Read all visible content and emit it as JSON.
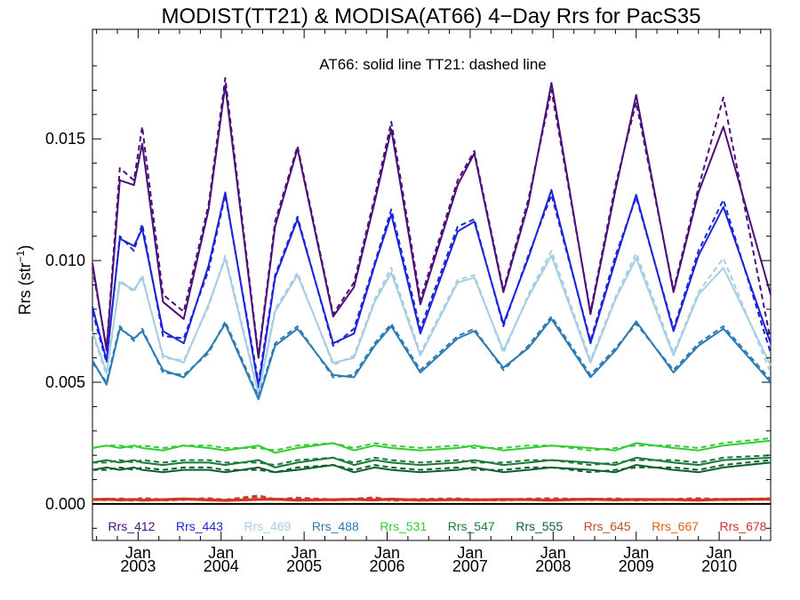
{
  "chart_data": {
    "type": "line",
    "title": "MODIST(TT21) & MODISA(AT66) 4−Day Rrs for PacS35",
    "ylabel": "Rrs (str",
    "ylabel_sup": "−1",
    "ylabel_close": ")",
    "annotation": "AT66: solid line   TT21: dashed line",
    "xlim": [
      2002.45,
      2010.62
    ],
    "ylim": [
      -0.0015,
      0.0195
    ],
    "yticks": [
      {
        "value": 0.0,
        "label": "0.000"
      },
      {
        "value": 0.005,
        "label": "0.005"
      },
      {
        "value": 0.01,
        "label": "0.010"
      },
      {
        "value": 0.015,
        "label": "0.015"
      }
    ],
    "xticks": [
      {
        "value": 2003.0,
        "label1": "Jan",
        "label2": "2003"
      },
      {
        "value": 2004.0,
        "label1": "Jan",
        "label2": "2004"
      },
      {
        "value": 2005.0,
        "label1": "Jan",
        "label2": "2005"
      },
      {
        "value": 2006.0,
        "label1": "Jan",
        "label2": "2006"
      },
      {
        "value": 2007.0,
        "label1": "Jan",
        "label2": "2007"
      },
      {
        "value": 2008.0,
        "label1": "Jan",
        "label2": "2008"
      },
      {
        "value": 2009.0,
        "label1": "Jan",
        "label2": "2009"
      },
      {
        "value": 2010.0,
        "label1": "Jan",
        "label2": "2010"
      }
    ],
    "series": [
      {
        "name": "Rrs_412",
        "color": "#4b0f7a",
        "solid": [
          0.0099,
          0.0063,
          0.0133,
          0.0131,
          0.0148,
          0.0083,
          0.0076,
          0.0121,
          0.0172,
          0.006,
          0.0114,
          0.0146,
          0.0077,
          0.0089,
          0.0124,
          0.0154,
          0.0082,
          0.0131,
          0.0144,
          0.0087,
          0.0123,
          0.0173,
          0.0078,
          0.0129,
          0.0168,
          0.0087,
          0.0128,
          0.0155,
          0.0086
        ],
        "dashed": [
          0.0097,
          0.0064,
          0.0138,
          0.0133,
          0.0155,
          0.0086,
          0.0079,
          0.0123,
          0.0175,
          0.0061,
          0.0116,
          0.0147,
          0.0078,
          0.0091,
          0.0126,
          0.0157,
          0.0084,
          0.0133,
          0.0145,
          0.0088,
          0.0125,
          0.017,
          0.0079,
          0.0131,
          0.0165,
          0.0088,
          0.013,
          0.0167,
          0.0067
        ]
      },
      {
        "name": "Rrs_443",
        "color": "#1b24d6",
        "solid": [
          0.0081,
          0.0059,
          0.0109,
          0.0106,
          0.0113,
          0.0071,
          0.0066,
          0.0098,
          0.0128,
          0.0048,
          0.0093,
          0.0117,
          0.0066,
          0.007,
          0.0098,
          0.0119,
          0.007,
          0.0112,
          0.0116,
          0.0074,
          0.0101,
          0.0129,
          0.0066,
          0.01,
          0.0127,
          0.0071,
          0.0102,
          0.0122,
          0.0066
        ],
        "dashed": [
          0.0079,
          0.0058,
          0.011,
          0.0104,
          0.0115,
          0.0069,
          0.0068,
          0.0096,
          0.0127,
          0.005,
          0.0094,
          0.0118,
          0.0065,
          0.0072,
          0.0099,
          0.0121,
          0.0072,
          0.0114,
          0.0117,
          0.0073,
          0.0102,
          0.0127,
          0.0067,
          0.0102,
          0.0126,
          0.0072,
          0.0104,
          0.0125,
          0.0062
        ]
      },
      {
        "name": "Rrs_469",
        "color": "#a6cee3",
        "solid": [
          0.0071,
          0.0054,
          0.0091,
          0.0088,
          0.0093,
          0.0061,
          0.0058,
          0.0082,
          0.0101,
          0.0045,
          0.0079,
          0.0094,
          0.0058,
          0.006,
          0.0083,
          0.0095,
          0.0061,
          0.0091,
          0.0093,
          0.0063,
          0.0085,
          0.0102,
          0.0058,
          0.0084,
          0.0101,
          0.0061,
          0.0086,
          0.0097,
          0.0057
        ],
        "dashed": [
          0.007,
          0.0053,
          0.0092,
          0.0087,
          0.0094,
          0.006,
          0.0059,
          0.0081,
          0.0102,
          0.0046,
          0.008,
          0.0095,
          0.0057,
          0.0061,
          0.0084,
          0.0097,
          0.0062,
          0.0092,
          0.0094,
          0.0062,
          0.0086,
          0.0104,
          0.0059,
          0.0085,
          0.0103,
          0.0062,
          0.0087,
          0.0101,
          0.0054
        ]
      },
      {
        "name": "Rrs_488",
        "color": "#2b7bb4",
        "solid": [
          0.0059,
          0.0049,
          0.0072,
          0.0068,
          0.0071,
          0.0055,
          0.0052,
          0.0063,
          0.0074,
          0.0043,
          0.0065,
          0.0072,
          0.0053,
          0.0052,
          0.0065,
          0.0073,
          0.0054,
          0.0068,
          0.0071,
          0.0056,
          0.0064,
          0.0076,
          0.0052,
          0.0063,
          0.0075,
          0.0054,
          0.0065,
          0.0072,
          0.005
        ],
        "dashed": [
          0.0058,
          0.005,
          0.0073,
          0.0067,
          0.0072,
          0.0054,
          0.0053,
          0.0062,
          0.0075,
          0.0044,
          0.0066,
          0.0073,
          0.0052,
          0.0053,
          0.0066,
          0.0074,
          0.0055,
          0.0069,
          0.0072,
          0.0055,
          0.0065,
          0.0077,
          0.0053,
          0.0064,
          0.0074,
          0.0055,
          0.0066,
          0.0073,
          0.0051
        ]
      },
      {
        "name": "Rrs_531",
        "color": "#33cc33",
        "solid": [
          0.0023,
          0.0024,
          0.0023,
          0.0024,
          0.0023,
          0.0022,
          0.0024,
          0.0023,
          0.0022,
          0.0024,
          0.0021,
          0.0023,
          0.0025,
          0.0022,
          0.0024,
          0.0023,
          0.0022,
          0.0023,
          0.0024,
          0.0022,
          0.0023,
          0.0024,
          0.0023,
          0.0022,
          0.0025,
          0.0023,
          0.0022,
          0.0024,
          0.0026
        ],
        "dashed": [
          0.0023,
          0.0024,
          0.0024,
          0.0023,
          0.0024,
          0.0023,
          0.0024,
          0.0024,
          0.0023,
          0.0023,
          0.0022,
          0.0024,
          0.0025,
          0.0023,
          0.0025,
          0.0024,
          0.0023,
          0.0024,
          0.0023,
          0.0023,
          0.0024,
          0.0024,
          0.0022,
          0.0023,
          0.0024,
          0.0024,
          0.0023,
          0.0025,
          0.0027
        ]
      },
      {
        "name": "Rrs_547",
        "color": "#1a7a3a",
        "solid": [
          0.0017,
          0.0018,
          0.0017,
          0.0018,
          0.0017,
          0.0016,
          0.0017,
          0.0017,
          0.0016,
          0.0018,
          0.0015,
          0.0017,
          0.0019,
          0.0016,
          0.0018,
          0.0017,
          0.0016,
          0.0017,
          0.0018,
          0.0016,
          0.0017,
          0.0018,
          0.0017,
          0.0016,
          0.0019,
          0.0017,
          0.0016,
          0.0018,
          0.0019
        ],
        "dashed": [
          0.0017,
          0.0017,
          0.0018,
          0.0017,
          0.0018,
          0.0017,
          0.0018,
          0.0018,
          0.0017,
          0.0017,
          0.0016,
          0.0018,
          0.0019,
          0.0017,
          0.0019,
          0.0018,
          0.0017,
          0.0018,
          0.0017,
          0.0017,
          0.0018,
          0.0018,
          0.0016,
          0.0017,
          0.0018,
          0.0018,
          0.0017,
          0.0019,
          0.002
        ]
      },
      {
        "name": "Rrs_555",
        "color": "#0d5e2e",
        "solid": [
          0.0014,
          0.0015,
          0.0014,
          0.0015,
          0.0014,
          0.0013,
          0.0014,
          0.0014,
          0.0013,
          0.0015,
          0.0013,
          0.0014,
          0.0016,
          0.0013,
          0.0015,
          0.0014,
          0.0013,
          0.0014,
          0.0015,
          0.0013,
          0.0014,
          0.0015,
          0.0014,
          0.0013,
          0.0016,
          0.0014,
          0.0013,
          0.0015,
          0.0017
        ],
        "dashed": [
          0.0014,
          0.0014,
          0.0015,
          0.0014,
          0.0015,
          0.0014,
          0.0015,
          0.0015,
          0.0014,
          0.0014,
          0.0013,
          0.0015,
          0.0016,
          0.0014,
          0.0016,
          0.0015,
          0.0014,
          0.0015,
          0.0014,
          0.0014,
          0.0015,
          0.0015,
          0.0013,
          0.0014,
          0.0015,
          0.0015,
          0.0014,
          0.0016,
          0.0018
        ]
      },
      {
        "name": "Rrs_645",
        "color": "#c0502a",
        "solid": [
          0.0002,
          0.00022,
          0.00019,
          0.00021,
          0.00018,
          0.0002,
          0.00023,
          0.00019,
          0.00017,
          0.00021,
          0.00022,
          0.00018,
          0.0002,
          0.00021,
          0.00019,
          0.00022,
          0.00018,
          0.0002,
          0.00019,
          0.00021,
          0.0002,
          0.00018,
          0.00022,
          0.00019,
          0.00021,
          0.0002,
          0.00018,
          0.00021,
          0.00022
        ],
        "dashed": [
          0.00021,
          0.0002,
          0.00023,
          0.00018,
          0.00025,
          0.00019,
          0.00021,
          0.00024,
          0.00018,
          0.00035,
          0.0002,
          0.00026,
          0.00019,
          0.00022,
          0.00027,
          0.00018,
          0.00021,
          0.00023,
          0.0002,
          0.00019,
          0.00022,
          0.00024,
          0.0002,
          0.00023,
          0.00019,
          0.00021,
          0.00024,
          0.0002,
          0.00023
        ]
      },
      {
        "name": "Rrs_667",
        "color": "#e0601a",
        "solid": [
          0.00015,
          0.00017,
          0.00014,
          0.00016,
          0.00013,
          0.00015,
          0.00018,
          0.00014,
          0.00012,
          0.00016,
          0.00017,
          0.00013,
          0.00015,
          0.00016,
          0.00014,
          0.00017,
          0.00013,
          0.00015,
          0.00014,
          0.00016,
          0.00015,
          0.00013,
          0.00017,
          0.00014,
          0.00016,
          0.00015,
          0.00013,
          0.00016,
          0.00017
        ],
        "dashed": [
          0.00016,
          0.00015,
          0.00018,
          0.00013,
          0.00019,
          0.00014,
          0.00016,
          0.00018,
          0.00013,
          0.00025,
          0.00015,
          0.0002,
          0.00014,
          0.00017,
          0.00021,
          0.00013,
          0.00016,
          0.00017,
          0.00015,
          0.00014,
          0.00017,
          0.00018,
          0.00015,
          0.00017,
          0.00014,
          0.00016,
          0.00018,
          0.00015,
          0.00017
        ]
      },
      {
        "name": "Rrs_678",
        "color": "#d03030",
        "solid": [
          0.00017,
          0.00019,
          0.00016,
          0.00018,
          0.00015,
          0.00017,
          0.0002,
          0.00016,
          0.00014,
          0.00018,
          0.00019,
          0.00015,
          0.00017,
          0.00018,
          0.00016,
          0.00019,
          0.00015,
          0.00017,
          0.00016,
          0.00018,
          0.00017,
          0.00015,
          0.00019,
          0.00016,
          0.00018,
          0.00017,
          0.00015,
          0.00018,
          0.00019
        ],
        "dashed": [
          0.00018,
          0.00017,
          0.0002,
          0.00015,
          0.00022,
          0.00016,
          0.00018,
          0.00021,
          0.00015,
          0.0003,
          0.00017,
          0.00023,
          0.00016,
          0.00019,
          0.00024,
          0.00015,
          0.00018,
          0.0002,
          0.00017,
          0.00016,
          0.00019,
          0.00021,
          0.00017,
          0.0002,
          0.00016,
          0.00018,
          0.00021,
          0.00017,
          0.0002
        ]
      }
    ],
    "x": [
      2002.45,
      2002.62,
      2002.78,
      2002.95,
      2003.05,
      2003.3,
      2003.55,
      2003.85,
      2004.05,
      2004.45,
      2004.65,
      2004.92,
      2005.35,
      2005.6,
      2005.85,
      2006.05,
      2006.4,
      2006.85,
      2007.05,
      2007.4,
      2007.7,
      2007.98,
      2008.45,
      2008.75,
      2009.0,
      2009.45,
      2009.75,
      2010.05,
      2010.62
    ],
    "legend_placement": "bottom",
    "grid": false
  }
}
